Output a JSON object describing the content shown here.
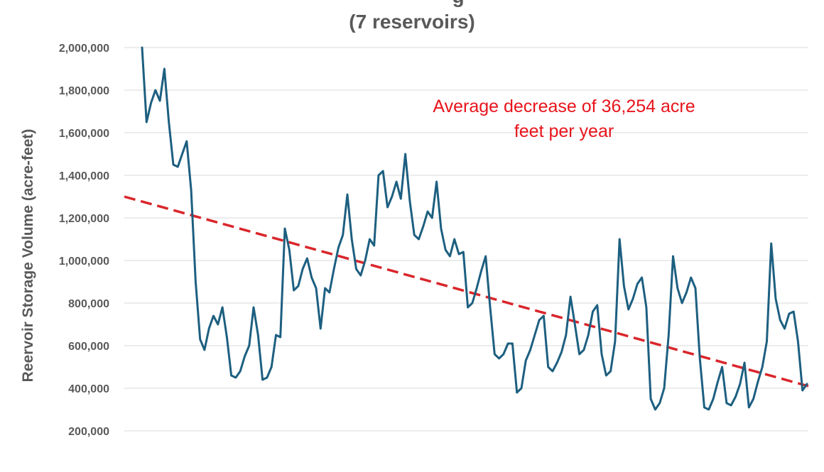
{
  "chart_data": {
    "type": "line",
    "title_visible_fragment": "g",
    "subtitle": "(7 reservoirs)",
    "ylabel": "Reervoir Storage Volume (acre-feet)",
    "xlabel": "",
    "ylim": [
      0,
      2000000
    ],
    "yticks": [
      200000,
      400000,
      600000,
      800000,
      1000000,
      1200000,
      1400000,
      1600000,
      1800000,
      2000000
    ],
    "ytick_labels": [
      "200,000",
      "400,000",
      "600,000",
      "800,000",
      "1,000,000",
      "1,200,000",
      "1,400,000",
      "1,600,000",
      "1,800,000",
      "2,000,000"
    ],
    "grid": true,
    "annotation": {
      "lines": [
        "Average decrease of 36,254 acre",
        "feet per year"
      ],
      "color": "#e8141c"
    },
    "series": [
      {
        "kind": "storage",
        "color": "#1d5f80",
        "values": [
          2000000,
          1650000,
          1740000,
          1800000,
          1750000,
          1900000,
          1650000,
          1450000,
          1440000,
          1500000,
          1560000,
          1330000,
          900000,
          630000,
          580000,
          680000,
          740000,
          700000,
          780000,
          640000,
          460000,
          450000,
          480000,
          550000,
          600000,
          780000,
          650000,
          440000,
          450000,
          500000,
          650000,
          640000,
          1150000,
          1050000,
          860000,
          880000,
          960000,
          1010000,
          920000,
          870000,
          680000,
          870000,
          850000,
          960000,
          1060000,
          1120000,
          1310000,
          1100000,
          960000,
          930000,
          1000000,
          1100000,
          1070000,
          1400000,
          1420000,
          1250000,
          1300000,
          1370000,
          1290000,
          1500000,
          1280000,
          1120000,
          1100000,
          1160000,
          1230000,
          1200000,
          1370000,
          1150000,
          1050000,
          1020000,
          1100000,
          1030000,
          1040000,
          780000,
          800000,
          870000,
          950000,
          1020000,
          780000,
          560000,
          540000,
          560000,
          610000,
          610000,
          380000,
          400000,
          530000,
          580000,
          650000,
          720000,
          740000,
          500000,
          480000,
          520000,
          570000,
          650000,
          830000,
          700000,
          560000,
          580000,
          650000,
          760000,
          790000,
          560000,
          460000,
          480000,
          620000,
          1100000,
          880000,
          770000,
          820000,
          890000,
          920000,
          780000,
          350000,
          300000,
          330000,
          400000,
          650000,
          1020000,
          870000,
          800000,
          850000,
          920000,
          870000,
          540000,
          310000,
          300000,
          350000,
          430000,
          500000,
          330000,
          320000,
          360000,
          420000,
          520000,
          310000,
          350000,
          430000,
          500000,
          620000,
          1080000,
          820000,
          720000,
          680000,
          750000,
          760000,
          620000,
          390000,
          420000
        ]
      },
      {
        "kind": "linear-trend",
        "color": "#d9262b",
        "start_value": 1300000,
        "end_value": 410000
      }
    ]
  }
}
